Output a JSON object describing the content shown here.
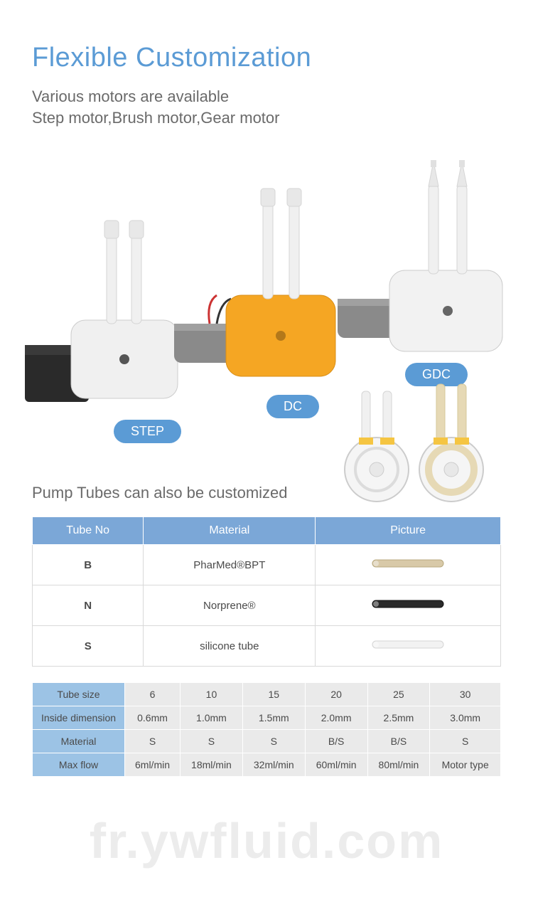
{
  "title": "Flexible Customization",
  "subtitle_line1": "Various motors are available",
  "subtitle_line2": "Step motor,Brush motor,Gear motor",
  "motors": {
    "badges": {
      "step": "STEP",
      "dc": "DC",
      "gdc": "GDC"
    },
    "colors": {
      "badge_bg": "#5b9bd5",
      "badge_text": "#ffffff",
      "pump_white": "#f5f5f5",
      "pump_stroke": "#cccccc",
      "motor_black": "#2a2a2a",
      "motor_grey": "#7a7a7a",
      "motor_grey_light": "#9a9a9a",
      "pump_dc": "#f5a623",
      "tube": "#e8e8e8",
      "wire_red": "#cc3333",
      "wire_black": "#333333"
    }
  },
  "tubes_heading": "Pump Tubes can also be customized",
  "tube_table": {
    "headers": [
      "Tube No",
      "Material",
      "Picture"
    ],
    "rows": [
      {
        "no": "B",
        "material": "PharMed®BPT",
        "pic_color": "#d8c9a8",
        "pic_type": "light"
      },
      {
        "no": "N",
        "material": "Norprene®",
        "pic_color": "#2a2a2a",
        "pic_type": "dark"
      },
      {
        "no": "S",
        "material": "silicone tube",
        "pic_color": "#f2f2f2",
        "pic_type": "white"
      }
    ],
    "header_bg": "#7ba7d7",
    "header_text": "#ffffff",
    "cell_border": "#d9d9d9"
  },
  "spec_table": {
    "row_head_bg": "#9cc3e5",
    "cell_bg": "#eaeaea",
    "rows": [
      {
        "label": "Tube size",
        "cells": [
          "6",
          "10",
          "15",
          "20",
          "25",
          "30"
        ]
      },
      {
        "label": "Inside dimension",
        "cells": [
          "0.6mm",
          "1.0mm",
          "1.5mm",
          "2.0mm",
          "2.5mm",
          "3.0mm"
        ]
      },
      {
        "label": "Material",
        "cells": [
          "S",
          "S",
          "S",
          "B/S",
          "B/S",
          "S"
        ]
      },
      {
        "label": "Max flow",
        "cells": [
          "6ml/min",
          "18ml/min",
          "32ml/min",
          "60ml/min",
          "80ml/min",
          "Motor type"
        ]
      }
    ]
  },
  "watermark": "fr.ywfluid.com",
  "tubes_image_colors": {
    "body": "#f5f5f5",
    "stroke": "#cccccc",
    "accent": "#f5c542",
    "tube2": "#e6d9b5"
  }
}
